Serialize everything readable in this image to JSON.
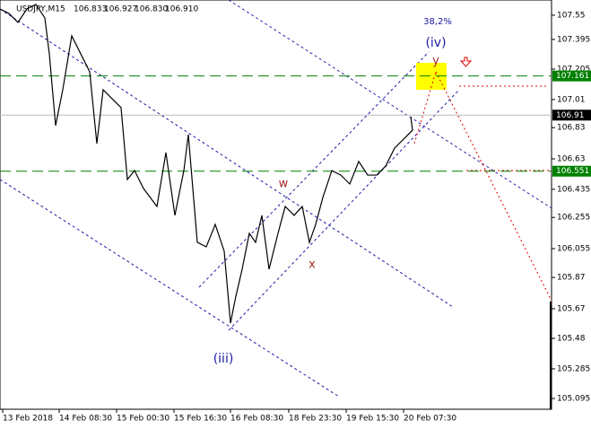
{
  "chart_data": {
    "type": "line",
    "symbol": "USDJPY,M15",
    "ohlc_header": [
      "106.833",
      "106.927",
      "106.830",
      "106.910"
    ],
    "x": [
      0,
      10,
      20,
      30,
      40,
      50,
      55,
      62,
      70,
      80,
      90,
      100,
      108,
      115,
      125,
      135,
      142,
      150,
      160,
      175,
      185,
      195,
      205,
      210,
      220,
      230,
      240,
      250,
      257,
      263,
      270,
      278,
      285,
      292,
      300,
      310,
      318,
      328,
      337,
      345,
      352,
      360,
      370,
      380,
      390,
      400,
      410,
      420,
      430,
      440,
      450,
      460,
      458
    ],
    "series": [
      {
        "name": "USDJPY",
        "color": "#000000",
        "values": [
          107.59,
          107.561,
          107.504,
          107.59,
          107.619,
          107.533,
          107.303,
          106.843,
          107.073,
          107.418,
          107.303,
          107.188,
          106.728,
          107.073,
          107.015,
          106.958,
          106.498,
          106.555,
          106.44,
          106.325,
          106.67,
          106.268,
          106.555,
          106.785,
          106.095,
          106.066,
          106.21,
          106.038,
          105.578,
          105.75,
          105.923,
          106.153,
          106.095,
          106.268,
          105.923,
          106.153,
          106.325,
          106.268,
          106.325,
          106.095,
          106.21,
          106.383,
          106.555,
          106.526,
          106.469,
          106.613,
          106.526,
          106.526,
          106.584,
          106.699,
          106.756,
          106.814,
          106.9
        ]
      }
    ],
    "xlim": [
      0,
      615
    ],
    "xticks": [
      {
        "value": 3,
        "label": "13 Feb 2018"
      },
      {
        "value": 66,
        "label": "14 Feb 08:30"
      },
      {
        "value": 130,
        "label": "15 Feb 00:30"
      },
      {
        "value": 194,
        "label": "15 Feb 16:30"
      },
      {
        "value": 257,
        "label": "16 Feb 08:30"
      },
      {
        "value": 322,
        "label": "18 Feb 23:30"
      },
      {
        "value": 386,
        "label": "19 Feb 15:30"
      },
      {
        "value": 450,
        "label": "20 Feb 07:30"
      }
    ],
    "ylim": [
      105.026,
      107.636
    ],
    "yticks": [
      107.55,
      107.395,
      107.205,
      107.01,
      106.83,
      106.63,
      106.435,
      106.255,
      106.055,
      105.87,
      105.67,
      105.48,
      105.285,
      105.095
    ],
    "levels": [
      {
        "value": 107.161,
        "color": "#008000",
        "dashed": true
      },
      {
        "value": 106.551,
        "color": "#008000",
        "dashed": true
      },
      {
        "value": 106.91,
        "color": "#000000",
        "dashed": false
      }
    ],
    "annotations": {
      "fib": "38,2%",
      "wave_iv": "(iv)",
      "wave_y": "y",
      "wave_w": "w",
      "wave_x": "x",
      "wave_iii": "(iii)"
    }
  }
}
